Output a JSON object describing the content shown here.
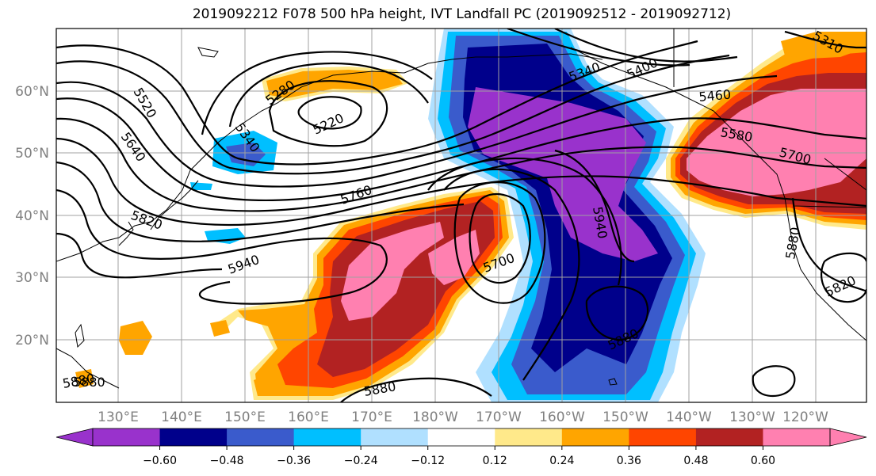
{
  "title": "2019092212 F078 500 hPa height, IVT Landfall PC (2019092512 - 2019092712)",
  "lat_labels": [
    "60°N",
    "50°N",
    "40°N",
    "30°N",
    "20°N"
  ],
  "lon_labels": [
    "130°E",
    "140°E",
    "150°E",
    "160°E",
    "170°E",
    "180°W",
    "170°W",
    "160°W",
    "150°W",
    "140°W",
    "130°W",
    "120°W"
  ],
  "colorbar": {
    "colors": [
      "#9932cc",
      "#00008b",
      "#3a5bcc",
      "#00bfff",
      "#b0e0ff",
      "#ffffff",
      "#ffe98a",
      "#ffa500",
      "#ff4500",
      "#b22222",
      "#ff80b0"
    ],
    "ticks": [
      "−0.60",
      "−0.48",
      "−0.36",
      "−0.24",
      "−0.12",
      "0.12",
      "0.24",
      "0.36",
      "0.48",
      "0.60"
    ]
  },
  "contour_labels": [
    "5220",
    "5280",
    "5340",
    "5340",
    "5400",
    "5460",
    "5520",
    "5580",
    "5640",
    "5700",
    "5700",
    "5760",
    "5820",
    "5880",
    "5880",
    "5880",
    "5940",
    "5940",
    "5820",
    "5880",
    "5310",
    "5880"
  ]
}
